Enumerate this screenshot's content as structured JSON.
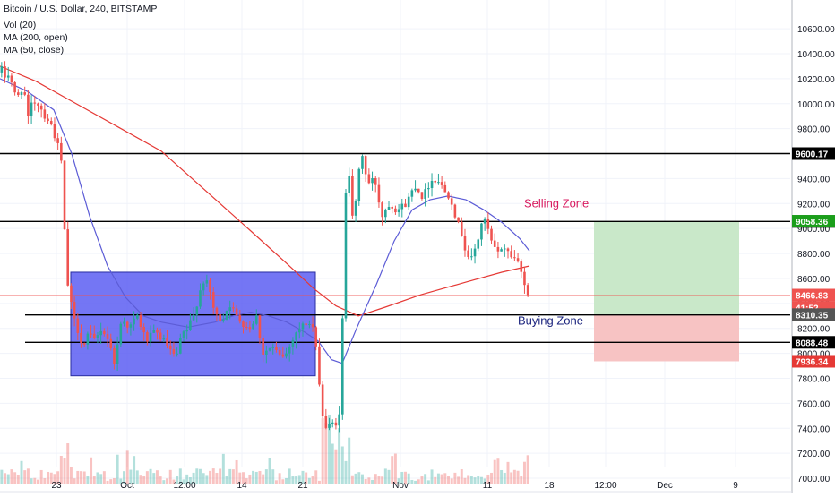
{
  "header": {
    "symbol_title": "Bitcoin / U.S. Dollar, 240, BITSTAMP",
    "indicators": [
      "Vol (20)",
      "MA (200, open)",
      "MA (50, close)"
    ]
  },
  "colors": {
    "up": "#26a69a",
    "down": "#ef5350",
    "ma_200": "#e53935",
    "ma_50": "#5c5cd6",
    "box_fill": "#5558f2",
    "target_zone": "#c9e8c9",
    "stop_zone": "#f7c3c3",
    "zone_selling_text": "#d81b60",
    "zone_buying_text": "#1a237e"
  },
  "chart_data": {
    "type": "candlestick",
    "y_axis": {
      "ylim": [
        6950,
        10780
      ],
      "ticks": [
        7000,
        7200,
        7400,
        7600,
        7800,
        8000,
        8200,
        8400,
        8600,
        8800,
        9000,
        9200,
        9400,
        9600,
        9800,
        10000,
        10200,
        10400,
        10600
      ],
      "tick_labels": [
        "7000.00",
        "7200.00",
        "7400.00",
        "7600.00",
        "7800.00",
        "8000.00",
        "8200.00",
        "8400.00",
        "8600.00",
        "8800.00",
        "9000.00",
        "9200.00",
        "9400.00",
        "9600.00",
        "9800.00",
        "10000.00",
        "10200.00",
        "10400.00",
        "10600.00"
      ]
    },
    "x_axis": {
      "tick_labels": [
        "23",
        "Oct",
        "12:00",
        "14",
        "21",
        "Nov",
        "11",
        "18",
        "12:00",
        "Dec",
        "9"
      ]
    },
    "horizontal_levels": [
      {
        "value": 9600.17,
        "label": "9600.17"
      },
      {
        "value": 9056.48,
        "label": "9056.48"
      },
      {
        "value": 8307.84,
        "label": "8307.84"
      },
      {
        "value": 8088.48,
        "label": "8088.48"
      }
    ],
    "price_tags": [
      {
        "value": 9058.36,
        "label": "9058.36",
        "color": "#1b9e1b"
      },
      {
        "value": 8466.83,
        "label": "8466.83",
        "color": "#ef5350"
      },
      {
        "value": 8366,
        "label": "41:52",
        "color": "#ef5350"
      },
      {
        "value": 8310.35,
        "label": "8310.35",
        "color": "#555555"
      },
      {
        "value": 7936.34,
        "label": "7936.34",
        "color": "#e53935"
      }
    ],
    "price_anchors": [
      [
        0,
        10250
      ],
      [
        5,
        10280
      ],
      [
        8,
        10200
      ],
      [
        12,
        10250
      ],
      [
        20,
        10030
      ],
      [
        28,
        10150
      ],
      [
        33,
        9870
      ],
      [
        38,
        10020
      ],
      [
        45,
        10000
      ],
      [
        52,
        9900
      ],
      [
        58,
        9850
      ],
      [
        65,
        9700
      ],
      [
        70,
        9560
      ],
      [
        72,
        9300
      ],
      [
        76,
        8600
      ],
      [
        79,
        8500
      ],
      [
        83,
        8300
      ],
      [
        88,
        8200
      ],
      [
        95,
        8050
      ],
      [
        100,
        8150
      ],
      [
        108,
        8100
      ],
      [
        115,
        8200
      ],
      [
        122,
        8120
      ],
      [
        130,
        7920
      ],
      [
        138,
        8300
      ],
      [
        146,
        8200
      ],
      [
        155,
        8300
      ],
      [
        165,
        8100
      ],
      [
        175,
        8170
      ],
      [
        185,
        8100
      ],
      [
        198,
        7950
      ],
      [
        205,
        8150
      ],
      [
        210,
        8180
      ],
      [
        218,
        8300
      ],
      [
        225,
        8500
      ],
      [
        230,
        8600
      ],
      [
        236,
        8500
      ],
      [
        242,
        8300
      ],
      [
        250,
        8270
      ],
      [
        258,
        8400
      ],
      [
        265,
        8300
      ],
      [
        272,
        8250
      ],
      [
        280,
        8200
      ],
      [
        288,
        8300
      ],
      [
        295,
        8000
      ],
      [
        305,
        8050
      ],
      [
        315,
        7970
      ],
      [
        322,
        8000
      ],
      [
        330,
        8150
      ],
      [
        336,
        8200
      ],
      [
        345,
        8250
      ],
      [
        352,
        8200
      ],
      [
        358,
        7800
      ],
      [
        362,
        7500
      ],
      [
        366,
        7400
      ],
      [
        372,
        7430
      ],
      [
        378,
        7450
      ],
      [
        382,
        7520
      ],
      [
        387,
        9250
      ],
      [
        391,
        9500
      ],
      [
        396,
        9050
      ],
      [
        400,
        9250
      ],
      [
        405,
        9650
      ],
      [
        412,
        9350
      ],
      [
        420,
        9400
      ],
      [
        428,
        9100
      ],
      [
        436,
        9200
      ],
      [
        445,
        9150
      ],
      [
        455,
        9200
      ],
      [
        465,
        9350
      ],
      [
        474,
        9250
      ],
      [
        482,
        9380
      ],
      [
        490,
        9400
      ],
      [
        498,
        9300
      ],
      [
        505,
        9250
      ],
      [
        512,
        9050
      ],
      [
        518,
        8950
      ],
      [
        522,
        8800
      ],
      [
        528,
        8750
      ],
      [
        535,
        8900
      ],
      [
        541,
        9100
      ],
      [
        546,
        9000
      ],
      [
        552,
        8850
      ],
      [
        558,
        8800
      ],
      [
        563,
        8870
      ],
      [
        570,
        8800
      ],
      [
        578,
        8750
      ],
      [
        583,
        8700
      ],
      [
        589,
        8500
      ],
      [
        591,
        8466.83
      ]
    ],
    "ma_200_points": [
      [
        0,
        10300
      ],
      [
        40,
        10180
      ],
      [
        80,
        10020
      ],
      [
        130,
        9820
      ],
      [
        180,
        9620
      ],
      [
        230,
        9300
      ],
      [
        280,
        8980
      ],
      [
        320,
        8720
      ],
      [
        350,
        8520
      ],
      [
        375,
        8380
      ],
      [
        400,
        8300
      ],
      [
        430,
        8370
      ],
      [
        470,
        8470
      ],
      [
        520,
        8570
      ],
      [
        560,
        8650
      ],
      [
        591,
        8700
      ]
    ],
    "ma_50_points": [
      [
        0,
        10200
      ],
      [
        30,
        10100
      ],
      [
        60,
        9950
      ],
      [
        80,
        9600
      ],
      [
        100,
        9100
      ],
      [
        120,
        8700
      ],
      [
        140,
        8450
      ],
      [
        160,
        8300
      ],
      [
        180,
        8250
      ],
      [
        210,
        8210
      ],
      [
        240,
        8250
      ],
      [
        260,
        8300
      ],
      [
        280,
        8330
      ],
      [
        300,
        8300
      ],
      [
        320,
        8250
      ],
      [
        340,
        8170
      ],
      [
        355,
        8100
      ],
      [
        370,
        7950
      ],
      [
        382,
        7920
      ],
      [
        398,
        8200
      ],
      [
        420,
        8550
      ],
      [
        440,
        8900
      ],
      [
        460,
        9150
      ],
      [
        480,
        9230
      ],
      [
        500,
        9260
      ],
      [
        520,
        9230
      ],
      [
        540,
        9150
      ],
      [
        560,
        9050
      ],
      [
        580,
        8920
      ],
      [
        591,
        8820
      ]
    ],
    "consolidation_box": {
      "x_start": 79,
      "x_end": 352,
      "y_high": 8650,
      "y_low": 7820
    },
    "position": {
      "x_start": 663,
      "x_end": 825,
      "entry": 8307.84,
      "target": 9056.48,
      "stop": 7936.34
    },
    "annotations": [
      {
        "text": "Selling Zone",
        "x": 585,
        "y": 9170,
        "color": "#d81b60"
      },
      {
        "text": "Buying Zone",
        "x": 578,
        "y": 8230,
        "color": "#1a237e"
      }
    ]
  }
}
